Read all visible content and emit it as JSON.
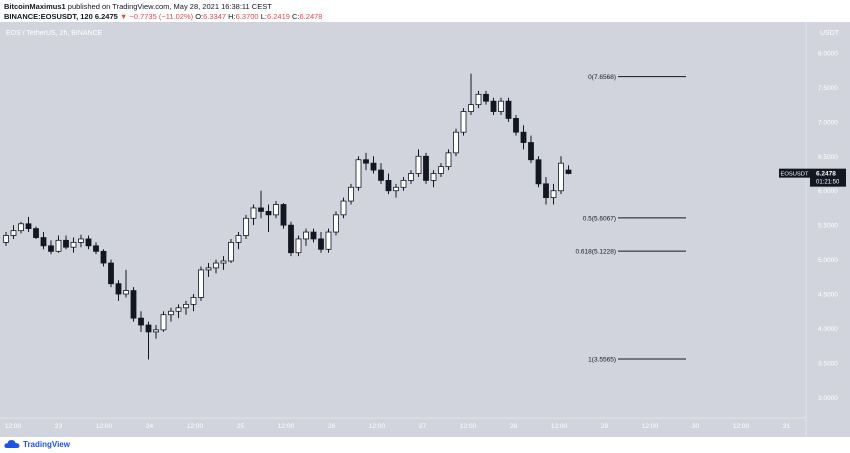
{
  "header": {
    "author": "BitcoinMaximus1",
    "published_text": "published on TradingView.com, May 28, 2021 16:38:11 CEST",
    "symbol": "BINANCE:EOSUSDT, 120",
    "last_price": "6.2475",
    "change": "▼ −0.7735 (−11.02%)",
    "o_label": "O:",
    "o_value": "6.3347",
    "h_label": "H:",
    "h_value": "6.3700",
    "l_label": "L:",
    "l_value": "6.2419",
    "c_label": "C:",
    "c_value": "6.2478"
  },
  "chart_data": {
    "type": "candlestick",
    "title": "EOS / TetherUS, 2h, BINANCE",
    "currency": "USDT",
    "ylim": [
      2.7,
      8.45
    ],
    "y_ticks": [
      3.0,
      3.5,
      4.0,
      4.5,
      5.0,
      5.5,
      6.0,
      6.5,
      7.0,
      7.5,
      8.0
    ],
    "x_ticks": [
      "12:00",
      "23",
      "12:00",
      "24",
      "12:00",
      "25",
      "12:00",
      "26",
      "12:00",
      "27",
      "12:00",
      "28",
      "12:00",
      "29",
      "12:00",
      "30",
      "12:00",
      "31"
    ],
    "candles": [
      [
        5.25,
        5.4,
        5.2,
        5.35
      ],
      [
        5.35,
        5.5,
        5.3,
        5.42
      ],
      [
        5.42,
        5.55,
        5.38,
        5.52
      ],
      [
        5.52,
        5.62,
        5.4,
        5.45
      ],
      [
        5.45,
        5.48,
        5.3,
        5.32
      ],
      [
        5.32,
        5.4,
        5.15,
        5.2
      ],
      [
        5.2,
        5.28,
        5.08,
        5.12
      ],
      [
        5.12,
        5.35,
        5.1,
        5.28
      ],
      [
        5.28,
        5.35,
        5.15,
        5.18
      ],
      [
        5.18,
        5.32,
        5.1,
        5.25
      ],
      [
        5.25,
        5.36,
        5.18,
        5.3
      ],
      [
        5.3,
        5.35,
        5.15,
        5.2
      ],
      [
        5.2,
        5.25,
        5.08,
        5.12
      ],
      [
        5.12,
        5.15,
        4.9,
        4.95
      ],
      [
        4.95,
        5.0,
        4.6,
        4.65
      ],
      [
        4.65,
        4.7,
        4.4,
        4.5
      ],
      [
        4.5,
        4.85,
        4.45,
        4.55
      ],
      [
        4.55,
        4.6,
        4.1,
        4.15
      ],
      [
        4.15,
        4.25,
        3.95,
        4.05
      ],
      [
        4.05,
        4.1,
        3.55,
        3.95
      ],
      [
        3.95,
        4.05,
        3.85,
        3.98
      ],
      [
        3.98,
        4.25,
        3.95,
        4.2
      ],
      [
        4.2,
        4.3,
        4.1,
        4.25
      ],
      [
        4.25,
        4.35,
        4.15,
        4.3
      ],
      [
        4.3,
        4.4,
        4.2,
        4.35
      ],
      [
        4.35,
        4.5,
        4.25,
        4.45
      ],
      [
        4.45,
        4.9,
        4.4,
        4.85
      ],
      [
        4.85,
        4.95,
        4.75,
        4.88
      ],
      [
        4.88,
        5.0,
        4.8,
        4.95
      ],
      [
        4.95,
        5.05,
        4.85,
        4.98
      ],
      [
        4.98,
        5.3,
        4.95,
        5.25
      ],
      [
        5.25,
        5.4,
        5.15,
        5.35
      ],
      [
        5.35,
        5.65,
        5.3,
        5.6
      ],
      [
        5.6,
        5.8,
        5.5,
        5.75
      ],
      [
        5.75,
        6.0,
        5.6,
        5.7
      ],
      [
        5.7,
        5.8,
        5.4,
        5.65
      ],
      [
        5.65,
        5.85,
        5.6,
        5.8
      ],
      [
        5.8,
        5.82,
        5.45,
        5.5
      ],
      [
        5.5,
        5.55,
        5.05,
        5.1
      ],
      [
        5.1,
        5.35,
        5.05,
        5.3
      ],
      [
        5.3,
        5.45,
        5.2,
        5.4
      ],
      [
        5.4,
        5.45,
        5.25,
        5.3
      ],
      [
        5.3,
        5.4,
        5.1,
        5.15
      ],
      [
        5.15,
        5.45,
        5.1,
        5.4
      ],
      [
        5.4,
        5.7,
        5.35,
        5.65
      ],
      [
        5.65,
        5.9,
        5.6,
        5.85
      ],
      [
        5.85,
        6.1,
        5.8,
        6.05
      ],
      [
        6.05,
        6.5,
        6.0,
        6.45
      ],
      [
        6.45,
        6.55,
        6.3,
        6.4
      ],
      [
        6.4,
        6.5,
        6.25,
        6.3
      ],
      [
        6.3,
        6.4,
        6.1,
        6.15
      ],
      [
        6.15,
        6.25,
        5.95,
        6.0
      ],
      [
        6.0,
        6.1,
        5.9,
        6.05
      ],
      [
        6.05,
        6.2,
        6.0,
        6.15
      ],
      [
        6.15,
        6.3,
        6.1,
        6.25
      ],
      [
        6.25,
        6.6,
        6.2,
        6.5
      ],
      [
        6.5,
        6.55,
        6.1,
        6.15
      ],
      [
        6.15,
        6.3,
        6.05,
        6.25
      ],
      [
        6.25,
        6.4,
        6.2,
        6.35
      ],
      [
        6.35,
        6.6,
        6.3,
        6.55
      ],
      [
        6.55,
        6.9,
        6.5,
        6.85
      ],
      [
        6.85,
        7.2,
        6.8,
        7.15
      ],
      [
        7.15,
        7.7,
        7.1,
        7.25
      ],
      [
        7.25,
        7.45,
        7.2,
        7.4
      ],
      [
        7.4,
        7.45,
        7.25,
        7.3
      ],
      [
        7.3,
        7.35,
        7.1,
        7.15
      ],
      [
        7.15,
        7.35,
        7.1,
        7.3
      ],
      [
        7.3,
        7.35,
        7.0,
        7.05
      ],
      [
        7.05,
        7.1,
        6.8,
        6.85
      ],
      [
        6.85,
        6.95,
        6.6,
        6.7
      ],
      [
        6.7,
        6.8,
        6.4,
        6.45
      ],
      [
        6.45,
        6.5,
        6.05,
        6.1
      ],
      [
        6.1,
        6.2,
        5.8,
        5.9
      ],
      [
        5.9,
        6.1,
        5.8,
        6.0
      ],
      [
        6.0,
        6.5,
        5.95,
        6.4
      ],
      [
        6.3,
        6.37,
        6.24,
        6.25
      ]
    ],
    "fib_levels": [
      {
        "label": "0(7.6568)",
        "value": 7.6568
      },
      {
        "label": "0.5(5.6067)",
        "value": 5.6067
      },
      {
        "label": "0.618(5.1228)",
        "value": 5.1228
      },
      {
        "label": "1(3.5565)",
        "value": 3.5565
      }
    ],
    "price_label": {
      "symbol": "EOSUSDT",
      "price": "6.2478",
      "countdown": "01:21:50"
    }
  },
  "colors": {
    "background": "#d1d4dc",
    "up_fill": "#ffffff",
    "down_fill": "#131722",
    "candle_outline": "#131722",
    "axis_text": "#ffffff",
    "fib_line": "#131722",
    "price_label_bg": "#131722",
    "price_label_text": "#ffffff"
  },
  "footer": {
    "brand": "TradingView",
    "logo_icon": "tradingview-cloud-icon"
  }
}
